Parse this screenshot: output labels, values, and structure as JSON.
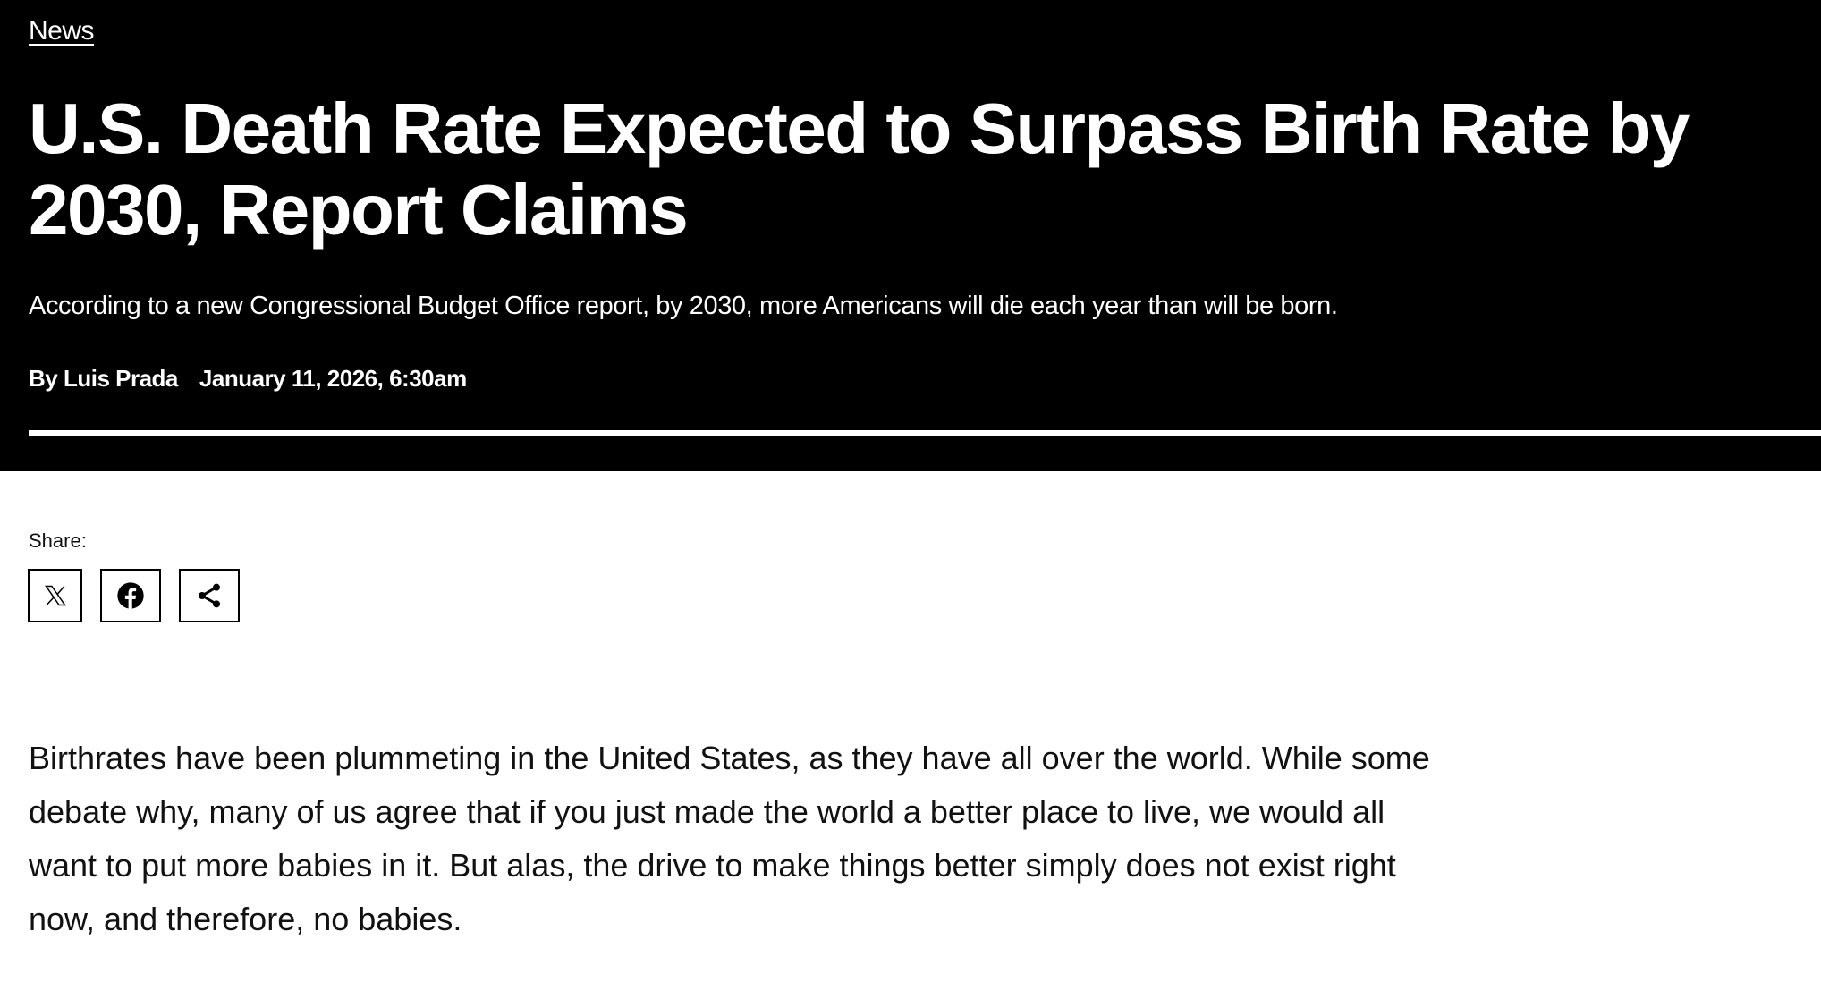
{
  "category": "News",
  "headline": "U.S. Death Rate Expected to Surpass Birth Rate by 2030, Report Claims",
  "dek": "According to a new Congressional Budget Office report, by 2030, more Americans will die each year than will be born.",
  "byline": {
    "author": "By Luis Prada",
    "date": "January 11, 2026, 6:30am"
  },
  "share": {
    "label": "Share:",
    "buttons": [
      {
        "icon": "x-twitter-icon"
      },
      {
        "icon": "facebook-icon"
      },
      {
        "icon": "share-icon"
      }
    ]
  },
  "body": "Birthrates have been plummeting in the United States, as they have all over the world. While some debate why, many of us agree that if you just made the world a better place to live, we would all want to put more babies in it. But alas, the drive to make things better simply does not exist right now, and therefore, no babies."
}
